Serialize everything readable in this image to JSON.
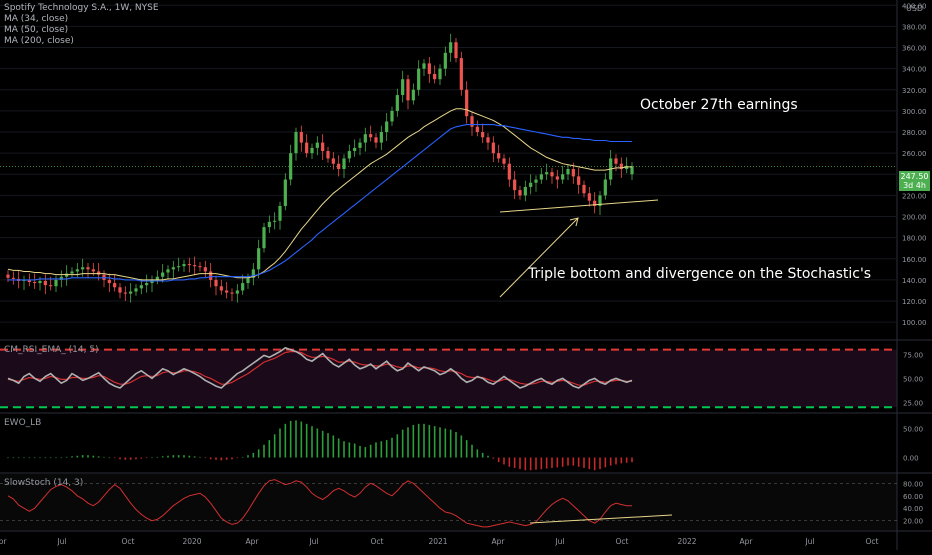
{
  "legend": {
    "symbol": "Spotify Technology S.A., 1W, NYSE",
    "ma1": "MA (34, close)",
    "ma2": "MA (50, close)",
    "ma3": "MA (200, close)"
  },
  "indicators": {
    "osc1": "CM_RSI_EMA_ (14, 5)",
    "osc2": "EWO_LB",
    "osc3": "SlowStoch (14, 3)"
  },
  "annotations": {
    "earnings": "October 27th earnings",
    "pattern": "Triple bottom and divergence on the Stochastic's"
  },
  "price_axis": {
    "currency": "USD",
    "last_price": "247.50",
    "countdown": "3d 4h"
  },
  "colors": {
    "up": "#4caf50",
    "down": "#ef5350",
    "ma34": "#e8d68a",
    "ma50": "#2962ff",
    "rsi": "#b0b0b0",
    "rsi_signal": "#d32f2f",
    "overbought": "#e53935",
    "oversold": "#00c853",
    "stoch": "#d32f2f",
    "trendline": "#e8d68a"
  },
  "chart_data": [
    {
      "type": "candlestick",
      "title": "Spotify Technology S.A., 1W, NYSE",
      "ylim": [
        85,
        405
      ],
      "y_ticks": [
        100,
        120,
        140,
        160,
        180,
        200,
        220,
        240,
        260,
        280,
        300,
        320,
        340,
        360,
        380,
        400
      ],
      "x_ticks": [
        "Apr",
        "Jul",
        "Oct",
        "2020",
        "Apr",
        "Jul",
        "Oct",
        "2021",
        "Apr",
        "Jul",
        "Oct",
        "2022",
        "Apr",
        "Jul",
        "Oct"
      ],
      "last_close": 247.5,
      "close": [
        142,
        141,
        139,
        140,
        138,
        137,
        139,
        135,
        134,
        140,
        143,
        146,
        148,
        150,
        152,
        150,
        148,
        145,
        140,
        137,
        133,
        128,
        127,
        129,
        132,
        135,
        137,
        140,
        143,
        147,
        150,
        152,
        153,
        155,
        154,
        153,
        152,
        148,
        140,
        134,
        130,
        128,
        127,
        130,
        137,
        142,
        150,
        170,
        190,
        195,
        196,
        210,
        235,
        260,
        280,
        270,
        260,
        265,
        270,
        262,
        255,
        250,
        245,
        255,
        262,
        265,
        270,
        278,
        275,
        270,
        280,
        290,
        300,
        315,
        330,
        310,
        320,
        340,
        345,
        335,
        330,
        340,
        355,
        365,
        350,
        320,
        295,
        285,
        280,
        275,
        270,
        260,
        255,
        250,
        235,
        225,
        220,
        228,
        232,
        235,
        240,
        242,
        238,
        235,
        240,
        245,
        238,
        230,
        222,
        215,
        210,
        220,
        235,
        255,
        250,
        245,
        248,
        247.5
      ],
      "open": [
        145,
        142,
        141,
        139,
        140,
        138,
        137,
        139,
        135,
        134,
        140,
        143,
        146,
        148,
        150,
        152,
        150,
        148,
        145,
        140,
        137,
        133,
        128,
        127,
        129,
        132,
        135,
        137,
        140,
        143,
        147,
        150,
        152,
        153,
        155,
        154,
        153,
        152,
        148,
        140,
        134,
        130,
        128,
        127,
        130,
        137,
        142,
        150,
        170,
        190,
        195,
        196,
        210,
        235,
        260,
        280,
        270,
        260,
        265,
        270,
        262,
        255,
        250,
        245,
        255,
        262,
        265,
        270,
        278,
        275,
        270,
        280,
        290,
        300,
        315,
        330,
        310,
        320,
        340,
        345,
        335,
        330,
        340,
        355,
        365,
        350,
        320,
        295,
        285,
        280,
        275,
        270,
        260,
        255,
        250,
        235,
        225,
        220,
        228,
        232,
        235,
        240,
        242,
        238,
        235,
        240,
        245,
        238,
        230,
        222,
        215,
        210,
        220,
        235,
        255,
        250,
        245,
        240
      ],
      "ma34": [
        150,
        149,
        149,
        148,
        148,
        147,
        147,
        146,
        146,
        145,
        145,
        145,
        145,
        145,
        146,
        146,
        146,
        146,
        146,
        145,
        145,
        144,
        143,
        142,
        141,
        140,
        140,
        140,
        140,
        140,
        141,
        141,
        142,
        143,
        144,
        145,
        146,
        146,
        146,
        146,
        145,
        144,
        143,
        142,
        142,
        142,
        143,
        145,
        148,
        152,
        156,
        161,
        167,
        174,
        181,
        188,
        194,
        200,
        206,
        212,
        217,
        222,
        226,
        230,
        234,
        238,
        242,
        246,
        250,
        253,
        256,
        259,
        263,
        267,
        271,
        275,
        278,
        281,
        285,
        288,
        291,
        294,
        297,
        300,
        302,
        302,
        301,
        299,
        297,
        295,
        293,
        291,
        288,
        285,
        281,
        277,
        273,
        269,
        265,
        262,
        259,
        256,
        254,
        252,
        250,
        249,
        248,
        247,
        246,
        245,
        244,
        244,
        244,
        245,
        246,
        246,
        247,
        247
      ],
      "ma50": [
        140,
        140,
        140,
        140,
        140,
        140,
        141,
        141,
        141,
        141,
        141,
        141,
        142,
        142,
        142,
        142,
        142,
        142,
        142,
        142,
        141,
        141,
        140,
        140,
        140,
        139,
        139,
        139,
        139,
        139,
        139,
        140,
        140,
        140,
        141,
        141,
        142,
        142,
        143,
        143,
        143,
        143,
        143,
        143,
        143,
        143,
        144,
        145,
        147,
        149,
        152,
        155,
        158,
        162,
        166,
        170,
        174,
        178,
        183,
        187,
        191,
        195,
        199,
        203,
        207,
        211,
        215,
        219,
        223,
        227,
        231,
        235,
        239,
        243,
        247,
        251,
        255,
        259,
        263,
        267,
        271,
        275,
        279,
        283,
        285,
        286,
        287,
        287,
        287,
        287,
        287,
        287,
        286,
        286,
        285,
        284,
        283,
        282,
        281,
        280,
        279,
        278,
        277,
        276,
        275,
        275,
        274,
        274,
        273,
        273,
        272,
        272,
        272,
        271,
        271,
        271,
        271,
        271
      ]
    },
    {
      "type": "line",
      "title": "CM_RSI_EMA_ (14, 5)",
      "ylim": [
        15,
        88
      ],
      "y_ticks": [
        25,
        50,
        75
      ],
      "overbought": 80,
      "oversold": 20,
      "series": [
        {
          "name": "RSI",
          "values": [
            50,
            48,
            45,
            52,
            55,
            50,
            47,
            52,
            55,
            50,
            45,
            48,
            55,
            52,
            48,
            50,
            53,
            56,
            50,
            45,
            42,
            40,
            45,
            50,
            55,
            58,
            54,
            50,
            55,
            60,
            58,
            54,
            57,
            60,
            58,
            55,
            52,
            48,
            45,
            42,
            40,
            45,
            50,
            55,
            58,
            62,
            66,
            70,
            74,
            72,
            75,
            78,
            82,
            80,
            78,
            75,
            70,
            68,
            72,
            76,
            70,
            65,
            62,
            66,
            70,
            64,
            60,
            62,
            65,
            60,
            64,
            68,
            62,
            58,
            60,
            66,
            62,
            58,
            62,
            60,
            58,
            54,
            56,
            60,
            56,
            50,
            46,
            48,
            52,
            50,
            46,
            44,
            48,
            52,
            48,
            44,
            40,
            42,
            45,
            48,
            50,
            46,
            44,
            48,
            50,
            46,
            42,
            40,
            44,
            48,
            50,
            46,
            44,
            48,
            50,
            48,
            46,
            48
          ]
        },
        {
          "name": "EMA",
          "values": [
            49,
            48,
            47,
            49,
            51,
            50,
            49,
            50,
            52,
            51,
            49,
            49,
            51,
            51,
            50,
            50,
            51,
            53,
            52,
            49,
            46,
            44,
            44,
            46,
            49,
            52,
            53,
            52,
            53,
            56,
            57,
            56,
            56,
            58,
            58,
            57,
            55,
            52,
            50,
            47,
            44,
            44,
            46,
            49,
            52,
            55,
            59,
            63,
            67,
            69,
            71,
            74,
            77,
            78,
            78,
            77,
            74,
            72,
            72,
            73,
            72,
            70,
            67,
            67,
            68,
            67,
            65,
            64,
            64,
            63,
            63,
            65,
            64,
            62,
            61,
            63,
            63,
            61,
            61,
            61,
            60,
            58,
            57,
            58,
            57,
            55,
            52,
            51,
            51,
            51,
            49,
            47,
            47,
            49,
            49,
            47,
            45,
            44,
            44,
            45,
            47,
            47,
            46,
            47,
            48,
            47,
            45,
            43,
            43,
            45,
            47,
            47,
            46,
            47,
            48,
            48,
            47,
            47
          ]
        }
      ]
    },
    {
      "type": "bar",
      "title": "EWO_LB",
      "ylim": [
        -25,
        75
      ],
      "y_ticks": [
        0,
        50
      ],
      "values": [
        0,
        0,
        0,
        0,
        0,
        0,
        0,
        0,
        0,
        0,
        0,
        1,
        2,
        3,
        4,
        4,
        3,
        2,
        1,
        0,
        -1,
        -3,
        -4,
        -4,
        -3,
        -2,
        -1,
        0,
        1,
        2,
        3,
        4,
        4,
        4,
        3,
        2,
        1,
        -1,
        -3,
        -4,
        -5,
        -4,
        -3,
        -1,
        1,
        4,
        8,
        14,
        22,
        30,
        40,
        50,
        58,
        63,
        64,
        62,
        58,
        54,
        50,
        46,
        42,
        38,
        33,
        28,
        26,
        24,
        20,
        18,
        22,
        26,
        28,
        30,
        34,
        40,
        48,
        52,
        56,
        58,
        58,
        56,
        54,
        52,
        50,
        48,
        44,
        38,
        30,
        22,
        14,
        8,
        3,
        -2,
        -8,
        -12,
        -16,
        -18,
        -20,
        -22,
        -22,
        -21,
        -20,
        -19,
        -18,
        -17,
        -16,
        -14,
        -14,
        -16,
        -18,
        -20,
        -22,
        -20,
        -17,
        -14,
        -12,
        -10,
        -9,
        -8
      ]
    },
    {
      "type": "line",
      "title": "SlowStoch (14, 3)",
      "ylim": [
        5,
        95
      ],
      "y_ticks": [
        20,
        40,
        60,
        80
      ],
      "series": [
        {
          "name": "%K",
          "values": [
            60,
            55,
            45,
            40,
            35,
            40,
            50,
            60,
            70,
            75,
            78,
            74,
            68,
            60,
            55,
            48,
            44,
            50,
            60,
            70,
            78,
            72,
            60,
            48,
            38,
            30,
            24,
            20,
            22,
            28,
            36,
            44,
            50,
            56,
            60,
            62,
            64,
            58,
            48,
            36,
            24,
            18,
            14,
            16,
            24,
            36,
            50,
            64,
            76,
            84,
            86,
            82,
            78,
            80,
            84,
            82,
            74,
            64,
            58,
            54,
            60,
            68,
            72,
            68,
            62,
            58,
            64,
            74,
            80,
            76,
            70,
            64,
            60,
            68,
            78,
            84,
            80,
            72,
            64,
            56,
            48,
            40,
            34,
            32,
            28,
            22,
            16,
            14,
            12,
            10,
            10,
            12,
            14,
            16,
            18,
            16,
            14,
            12,
            14,
            18,
            28,
            38,
            46,
            52,
            56,
            52,
            44,
            36,
            28,
            20,
            16,
            22,
            34,
            44,
            48,
            46,
            44,
            44
          ]
        }
      ]
    }
  ]
}
